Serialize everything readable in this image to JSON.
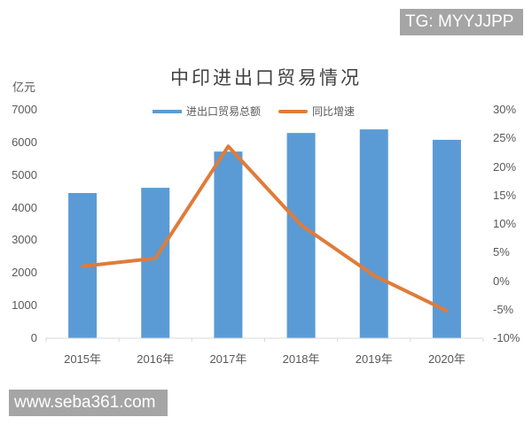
{
  "watermarks": {
    "top_right": "TG: MYYJJPP",
    "bottom_left": "www.seba361.com"
  },
  "chart_data": {
    "type": "bar+line",
    "title": "中印进出口贸易情况",
    "ylabel": "亿元",
    "y2label": "",
    "xlabel": "",
    "categories": [
      "2015年",
      "2016年",
      "2017年",
      "2018年",
      "2019年",
      "2020年"
    ],
    "series": [
      {
        "name": "进出口贸易总额",
        "type": "bar",
        "axis": "left",
        "color": "#5B9BD5",
        "values": [
          4450,
          4610,
          5720,
          6290,
          6400,
          6080
        ]
      },
      {
        "name": "同比增速",
        "type": "line",
        "axis": "right",
        "color": "#E07B39",
        "values": [
          2.6,
          4.0,
          23.6,
          9.8,
          1.0,
          -5.2
        ]
      }
    ],
    "ylim": [
      0,
      7000
    ],
    "y2lim": [
      -10,
      30
    ],
    "yticks": [
      "0",
      "1000",
      "2000",
      "3000",
      "4000",
      "5000",
      "6000",
      "7000"
    ],
    "y2ticks": [
      "-10%",
      "-5%",
      "0%",
      "5%",
      "10%",
      "15%",
      "20%",
      "25%",
      "30%"
    ],
    "grid": false,
    "legend_position": "top"
  }
}
